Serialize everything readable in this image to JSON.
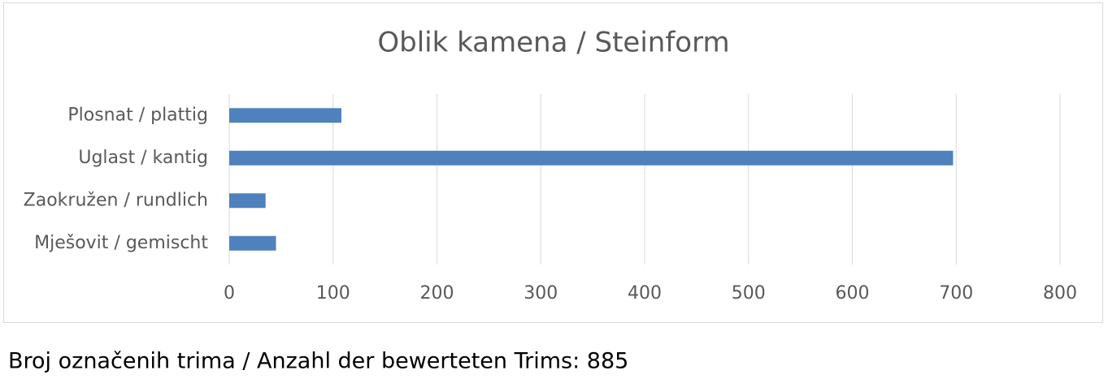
{
  "chart_data": {
    "type": "bar",
    "orientation": "horizontal",
    "title": "Oblik kamena / Steinform",
    "categories": [
      "Plosnat / plattig",
      "Uglast / kantig",
      "Zaokružen / rundlich",
      "Mješovit / gemischt"
    ],
    "values": [
      108,
      697,
      35,
      45
    ],
    "color": "#4f81bd",
    "xlim": [
      0,
      800
    ],
    "xticks": [
      0,
      100,
      200,
      300,
      400,
      500,
      600,
      700,
      800
    ],
    "grid": true
  },
  "caption": "Broj označenih trima / Anzahl der bewerteten Trims: 885"
}
